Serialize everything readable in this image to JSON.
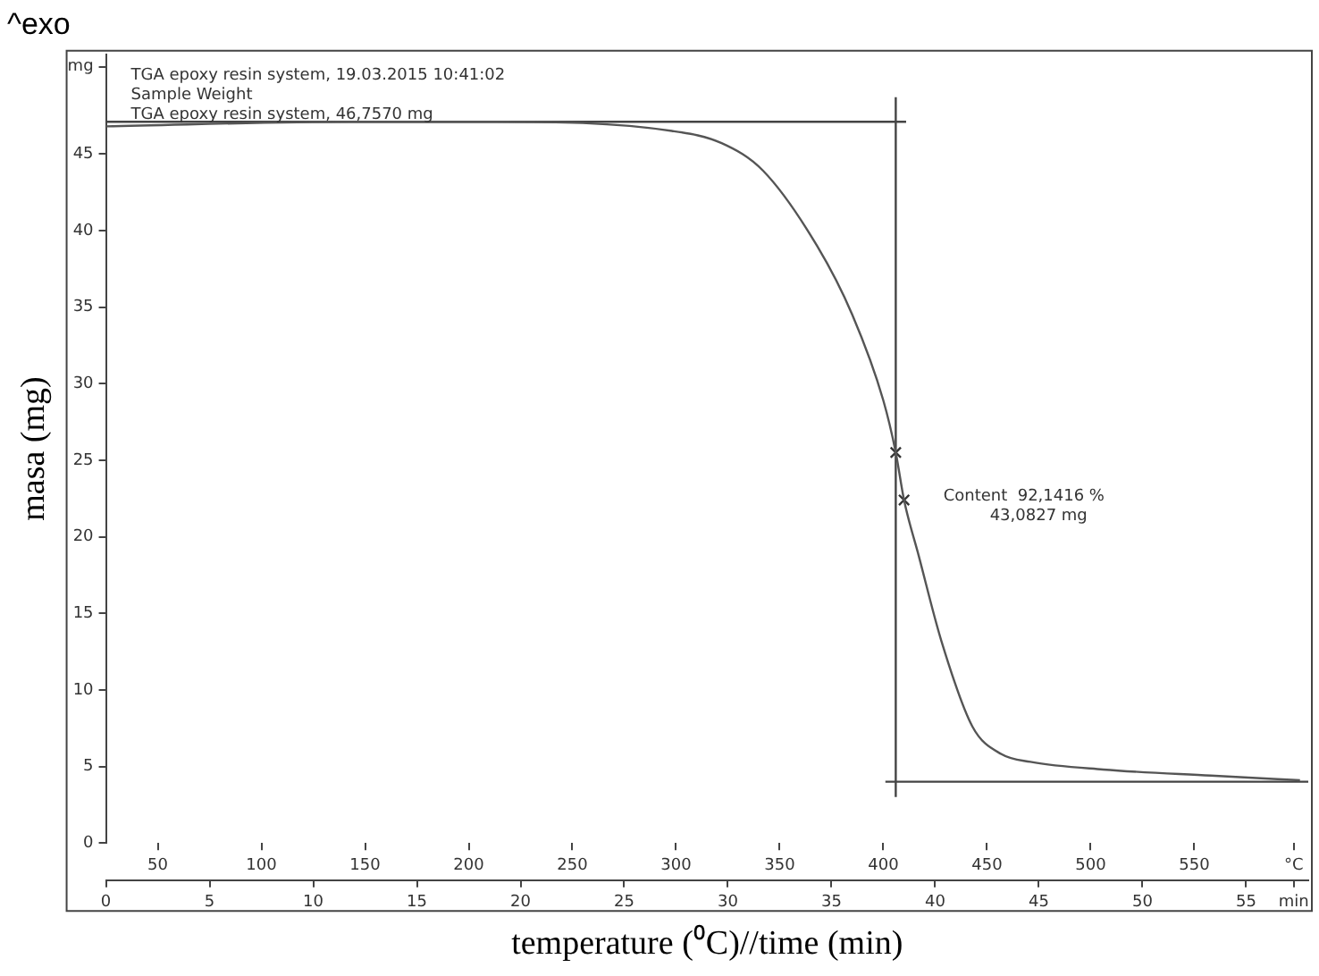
{
  "chart_data": {
    "type": "line",
    "title": "^exo",
    "xlabel": "temperature (⁰C)//time (min)",
    "ylabel": "masa (mg)",
    "xlim": [
      0,
      58
    ],
    "xticks": [
      0,
      5,
      10,
      15,
      20,
      25,
      30,
      35,
      40,
      45,
      50,
      55,
      {
        "value": 57.3,
        "label": "min"
      }
    ],
    "x2lim": [
      25,
      605
    ],
    "x2ticks": [
      50,
      100,
      150,
      200,
      250,
      300,
      350,
      400,
      450,
      500,
      550,
      {
        "value": 598,
        "label": "°C"
      }
    ],
    "ylim": [
      0,
      51.5
    ],
    "yticks": [
      0,
      5,
      10,
      15,
      20,
      25,
      30,
      35,
      40,
      45,
      {
        "value": 50.7,
        "label": "mg"
      }
    ],
    "grid": false,
    "legend": false,
    "annotations": [
      "TGA epoxy resin system, 19.03.2015 10:41:02",
      "Sample Weight",
      "TGA epoxy resin system, 46,7570 mg",
      "Content  92,1416 %",
      "43,0827 mg"
    ],
    "series": [
      {
        "color": "#555555",
        "x": [
          0,
          11.8,
          18.7,
          27.3,
          29.7,
          31.7,
          34.3,
          36.0,
          37.5,
          38.1,
          38.5,
          39.2,
          40.3,
          41.8,
          43.2,
          44.6,
          48.1,
          53.3,
          57.6
        ],
        "values": [
          46.8,
          47.1,
          47.1,
          46.5,
          45.7,
          43.9,
          39.0,
          34.5,
          28.9,
          25.5,
          22.4,
          18.8,
          13.2,
          7.6,
          5.8,
          5.3,
          4.8,
          4.4,
          4.1
        ]
      },
      {
        "color": "#444444",
        "x": [
          0,
          38.6
        ],
        "values": [
          47.1,
          47.1
        ]
      },
      {
        "color": "#444444",
        "x": [
          38.1,
          38.1
        ],
        "values": [
          3.0,
          48.7
        ]
      },
      {
        "color": "#444444",
        "x": [
          37.6,
          58
        ],
        "values": [
          4.0,
          4.0
        ]
      },
      {
        "type": "scatter",
        "color": "#333333",
        "marker": "cross",
        "x": [
          38.1,
          38.5
        ],
        "values": [
          25.5,
          22.4
        ]
      }
    ]
  }
}
